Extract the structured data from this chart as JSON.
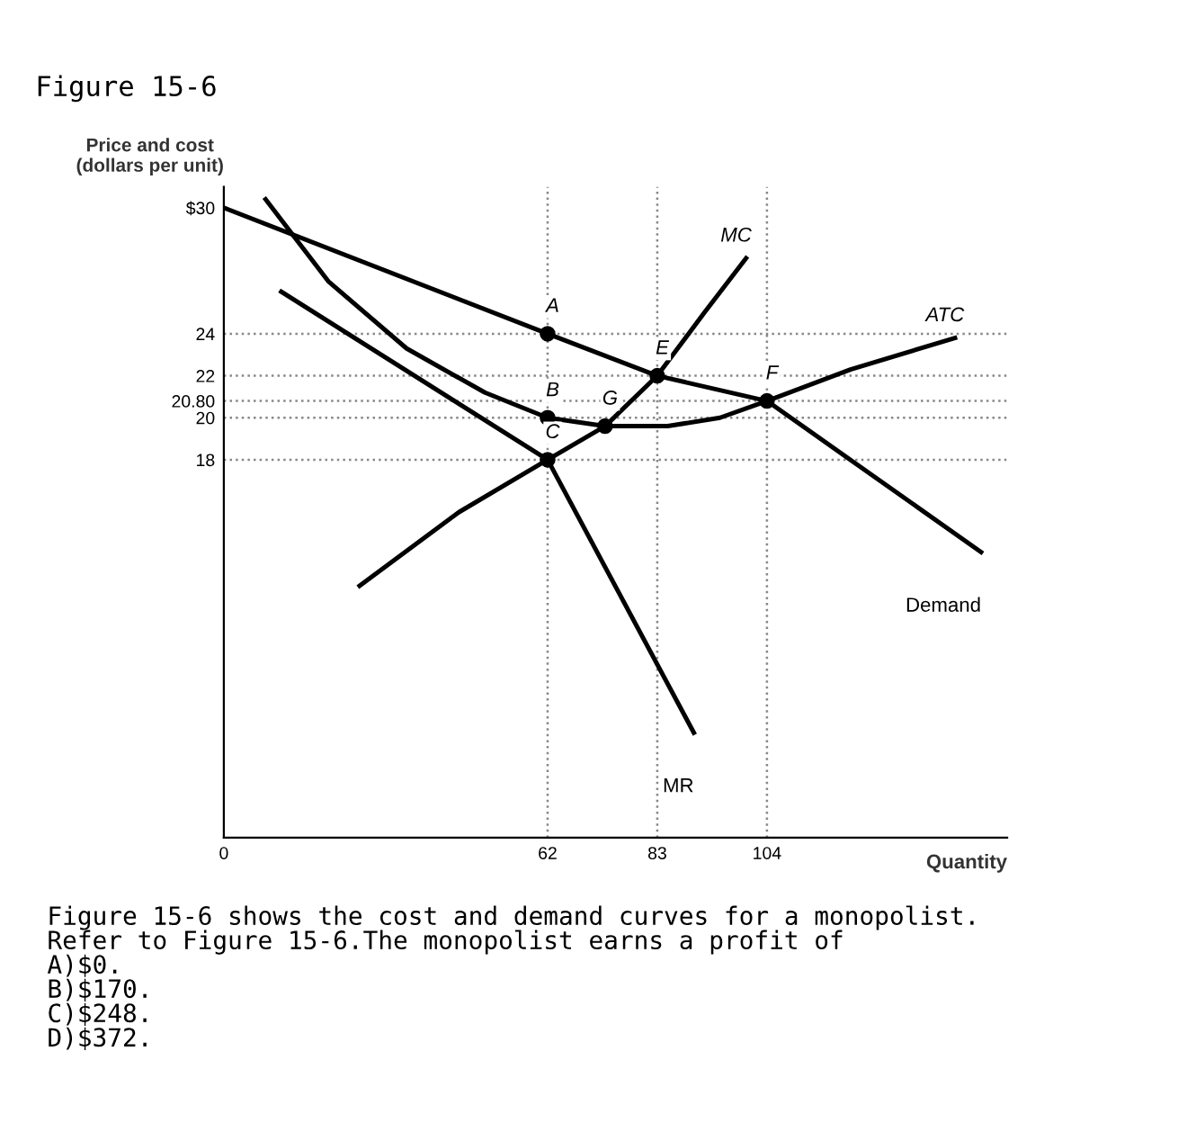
{
  "chart_data": {
    "type": "line",
    "title": "Figure 15-6",
    "ylabel": "Price and cost\n(dollars per unit)",
    "xlabel": "Quantity",
    "xlim": [
      0,
      150
    ],
    "ylim": [
      0,
      31
    ],
    "xticks": [
      0,
      62,
      83,
      104
    ],
    "yticks": [
      18,
      20,
      {
        "value": 20.8,
        "label": "20.80"
      },
      22,
      24,
      {
        "value": 30,
        "label": "$30"
      }
    ],
    "grid": false,
    "legend": false,
    "marker": "none",
    "line_style": "solid",
    "series": [
      {
        "name": "Demand",
        "color": "#000000",
        "x": [
          0,
          62,
          83,
          104,
          145
        ],
        "values": [
          30,
          24,
          22,
          20.8,
          13.6
        ]
      },
      {
        "name": "MR",
        "color": "#000000",
        "x": [
          11,
          62,
          90
        ],
        "values": [
          26,
          18,
          5
        ]
      },
      {
        "name": "MC",
        "color": "#000000",
        "x": [
          26,
          45,
          62,
          73,
          83,
          92,
          100
        ],
        "values": [
          12,
          15.5,
          18,
          19.6,
          22,
          25,
          27.6
        ]
      },
      {
        "name": "ATC",
        "color": "#000000",
        "x": [
          8,
          20,
          35,
          50,
          62,
          73,
          85,
          95,
          104,
          120,
          140
        ],
        "values": [
          30.4,
          26.5,
          23.3,
          21.2,
          20,
          19.6,
          19.6,
          20,
          20.8,
          22.3,
          23.8
        ]
      },
      {
        "type": "scatter",
        "color": "#000000",
        "marker": "circle",
        "x": [
          62,
          62,
          62,
          83,
          104,
          73
        ],
        "values": [
          24,
          20,
          18,
          22,
          20.8,
          19.6
        ]
      }
    ],
    "ref_lines": [
      {
        "axis": "y",
        "value": 24,
        "line_style": "dotted",
        "color": "#888888"
      },
      {
        "axis": "y",
        "value": 22,
        "line_style": "dotted",
        "color": "#888888"
      },
      {
        "axis": "y",
        "value": 20.8,
        "line_style": "dotted",
        "color": "#888888"
      },
      {
        "axis": "y",
        "value": 20,
        "line_style": "dotted",
        "color": "#888888"
      },
      {
        "axis": "y",
        "value": 18,
        "line_style": "dotted",
        "color": "#888888"
      },
      {
        "axis": "x",
        "value": 62,
        "line_style": "dotted",
        "color": "#888888"
      },
      {
        "axis": "x",
        "value": 83,
        "line_style": "dotted",
        "color": "#888888"
      },
      {
        "axis": "x",
        "value": 104,
        "line_style": "dotted",
        "color": "#888888"
      }
    ],
    "annotations": [
      {
        "text": "A",
        "x": 62,
        "y": 24
      },
      {
        "text": "B",
        "x": 62,
        "y": 20
      },
      {
        "text": "C",
        "x": 62,
        "y": 18
      },
      {
        "text": "E",
        "x": 83,
        "y": 22
      },
      {
        "text": "F",
        "x": 104,
        "y": 20.8
      },
      {
        "text": "G",
        "x": 73,
        "y": 19.6
      },
      "Figure 15-6 shows the cost and demand curves for a monopolist.",
      "Refer to Figure 15-6.The monopolist earns a profit of",
      "A)$0.",
      "B)$170.",
      "C)$248.",
      "D)$372."
    ]
  }
}
